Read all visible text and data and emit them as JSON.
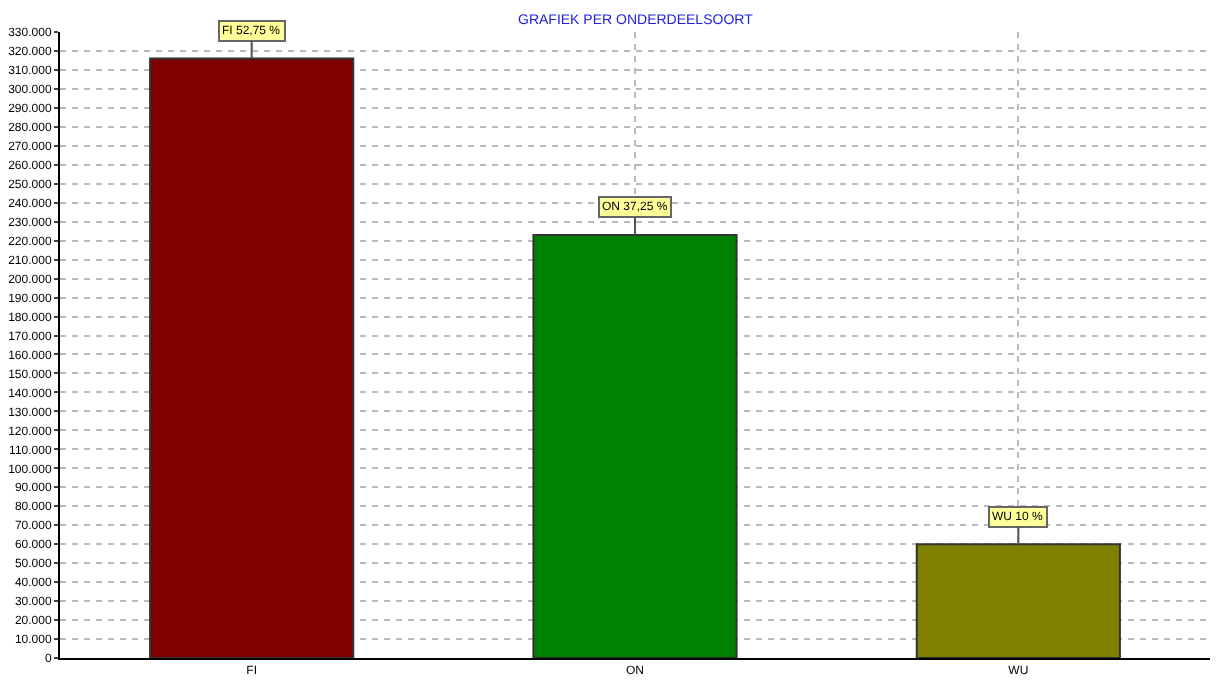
{
  "chart_data": {
    "type": "bar",
    "title": "GRAFIEK PER ONDERDEELSOORT",
    "categories": [
      "FI",
      "ON",
      "WU"
    ],
    "values": [
      316000,
      223000,
      60000
    ],
    "colors": [
      "#800000",
      "#008000",
      "#808000"
    ],
    "value_labels": [
      "FI 52,75 %",
      "ON 37,25 %",
      "WU 10 %"
    ],
    "ylim": [
      0,
      330000
    ],
    "yticks": [
      0,
      {
        "value": 10000,
        "label": "10.000"
      },
      {
        "value": 20000,
        "label": "20.000"
      },
      {
        "value": 30000,
        "label": "30.000"
      },
      {
        "value": 40000,
        "label": "40.000"
      },
      {
        "value": 50000,
        "label": "50.000"
      },
      {
        "value": 60000,
        "label": "60.000"
      },
      {
        "value": 70000,
        "label": "70.000"
      },
      {
        "value": 80000,
        "label": "80.000"
      },
      {
        "value": 90000,
        "label": "90.000"
      },
      {
        "value": 100000,
        "label": "100.000"
      },
      {
        "value": 110000,
        "label": "110.000"
      },
      {
        "value": 120000,
        "label": "120.000"
      },
      {
        "value": 130000,
        "label": "130.000"
      },
      {
        "value": 140000,
        "label": "140.000"
      },
      {
        "value": 150000,
        "label": "150.000"
      },
      {
        "value": 160000,
        "label": "160.000"
      },
      {
        "value": 170000,
        "label": "170.000"
      },
      {
        "value": 180000,
        "label": "180.000"
      },
      {
        "value": 190000,
        "label": "190.000"
      },
      {
        "value": 200000,
        "label": "200.000"
      },
      {
        "value": 210000,
        "label": "210.000"
      },
      {
        "value": 220000,
        "label": "220.000"
      },
      {
        "value": 230000,
        "label": "230.000"
      },
      {
        "value": 240000,
        "label": "240.000"
      },
      {
        "value": 250000,
        "label": "250.000"
      },
      {
        "value": 260000,
        "label": "260.000"
      },
      {
        "value": 270000,
        "label": "270.000"
      },
      {
        "value": 280000,
        "label": "280.000"
      },
      {
        "value": 290000,
        "label": "290.000"
      },
      {
        "value": 300000,
        "label": "300.000"
      },
      {
        "value": 310000,
        "label": "310.000"
      },
      {
        "value": 320000,
        "label": "320.000"
      },
      {
        "value": 330000,
        "label": "330.000"
      }
    ],
    "grid": true
  }
}
